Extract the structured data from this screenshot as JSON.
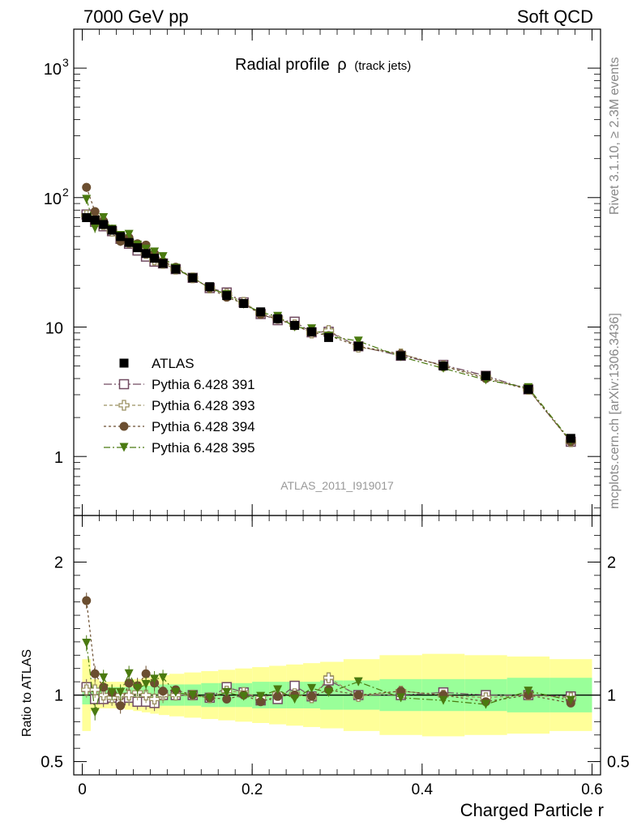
{
  "header": {
    "left": "7000 GeV pp",
    "right": "Soft QCD"
  },
  "title": {
    "main": "Radial profile",
    "symbol": "ρ",
    "sub": "(track jets)"
  },
  "side_labels": {
    "rivet": "Rivet 3.1.10, ≥ 2.3M events",
    "source": "mcplots.cern.ch [arXiv:1306.3436]"
  },
  "watermark": "ATLAS_2011_I919017",
  "colors": {
    "atlas": "#000000",
    "p391": "#704a60",
    "p393": "#9a9060",
    "p394": "#6b4e30",
    "p395": "#4a7a10",
    "band_outer": "#ffff99",
    "band_inner": "#99ff99"
  },
  "chart_data": {
    "type": "scatter",
    "x": [
      0.005,
      0.015,
      0.025,
      0.035,
      0.045,
      0.055,
      0.065,
      0.075,
      0.085,
      0.095,
      0.11,
      0.13,
      0.15,
      0.17,
      0.19,
      0.21,
      0.23,
      0.25,
      0.27,
      0.29,
      0.325,
      0.375,
      0.425,
      0.475,
      0.525,
      0.575
    ],
    "xlabel": "Charged Particle r",
    "ylabel_ratio": "Ratio to ATLAS",
    "xlim": [
      -0.01,
      0.61
    ],
    "ylim": [
      0.35,
      2000
    ],
    "ylim_ratio": [
      0.4,
      2.35
    ],
    "y_log": true,
    "xticks": [
      "0",
      "0.2",
      "0.4",
      "0.6"
    ],
    "yticks": [
      "1",
      "10",
      "10^2",
      "10^3"
    ],
    "yticks_ratio": [
      "0.5",
      "1",
      "2"
    ],
    "legend": {
      "position": "lower-left"
    },
    "series": [
      {
        "name": "ATLAS",
        "marker": "square-filled",
        "color": "#000000",
        "values": [
          70,
          67,
          62,
          56,
          50,
          45,
          41,
          37,
          34,
          31,
          28,
          24,
          20.5,
          17.5,
          15.2,
          13.1,
          11.6,
          10.3,
          9.2,
          8.3,
          7.1,
          6.0,
          5.0,
          4.2,
          3.3,
          1.38
        ]
      },
      {
        "name": "Pythia 6.428 391",
        "marker": "square-open",
        "color": "#704a60",
        "values": [
          74,
          65,
          60,
          55,
          48,
          44,
          39,
          35,
          32,
          31,
          28,
          24,
          20,
          18.5,
          15.5,
          12.6,
          11.3,
          11,
          9.1,
          9.2,
          7.1,
          6.0,
          5.1,
          4.2,
          3.3,
          1.3
        ]
      },
      {
        "name": "Pythia 6.428 393",
        "marker": "cross-open",
        "color": "#9a9060",
        "values": [
          73,
          70,
          62,
          55,
          50,
          45,
          42,
          37,
          33,
          31,
          28,
          24,
          20,
          18,
          15.5,
          12.8,
          11.7,
          10.4,
          9.0,
          9.4,
          7.0,
          6.2,
          5.0,
          4.1,
          3.3,
          1.3
        ]
      },
      {
        "name": "Pythia 6.428 394",
        "marker": "circle-filled",
        "color": "#6b4e30",
        "values": [
          120,
          78,
          66,
          57,
          46,
          49,
          44,
          43,
          37,
          32,
          29,
          24,
          20,
          17,
          15.2,
          12.5,
          11.5,
          10.3,
          9.1,
          8.6,
          7.1,
          6.2,
          5.0,
          4.0,
          3.3,
          1.3
        ]
      },
      {
        "name": "Pythia 6.428 395",
        "marker": "triangle-down-filled",
        "color": "#4a7a10",
        "values": [
          97,
          58,
          70,
          57,
          51,
          52,
          43,
          40,
          38,
          35,
          28.5,
          24,
          20,
          17.8,
          15,
          13,
          12.1,
          10,
          9.7,
          8.5,
          7.8,
          5.9,
          4.8,
          3.9,
          3.4,
          1.32
        ]
      }
    ],
    "ratio_series": [
      {
        "name": "Pythia 6.428 391",
        "values": [
          1.06,
          0.97,
          0.97,
          0.98,
          0.96,
          0.98,
          0.95,
          0.95,
          0.94,
          1.0,
          1.0,
          1.0,
          0.98,
          1.06,
          1.02,
          0.96,
          0.97,
          1.07,
          0.99,
          1.11,
          1.0,
          1.0,
          1.02,
          1.0,
          1.0,
          0.99
        ]
      },
      {
        "name": "Pythia 6.428 393",
        "values": [
          1.04,
          1.04,
          1.0,
          0.98,
          1.0,
          1.0,
          1.02,
          1.0,
          0.97,
          1.0,
          1.0,
          1.0,
          0.98,
          1.03,
          1.02,
          0.98,
          1.01,
          1.01,
          0.98,
          1.13,
          0.99,
          1.03,
          1.0,
          0.98,
          1.0,
          0.98
        ]
      },
      {
        "name": "Pythia 6.428 394",
        "values": [
          1.71,
          1.16,
          1.06,
          1.02,
          0.92,
          1.09,
          1.07,
          1.16,
          1.09,
          1.03,
          1.04,
          1.0,
          0.98,
          0.97,
          1.0,
          0.95,
          0.99,
          1.0,
          0.99,
          1.04,
          1.0,
          1.03,
          1.0,
          0.95,
          1.0,
          0.94
        ]
      },
      {
        "name": "Pythia 6.428 395",
        "values": [
          1.39,
          0.87,
          1.13,
          1.02,
          1.02,
          1.16,
          1.05,
          1.08,
          1.12,
          1.13,
          1.02,
          1.0,
          0.98,
          1.02,
          0.99,
          0.99,
          1.04,
          0.97,
          1.05,
          1.02,
          1.1,
          0.98,
          0.96,
          0.93,
          1.03,
          0.96
        ]
      }
    ],
    "uncertainty_band": {
      "outer": [
        0.27,
        0.12,
        0.1,
        0.1,
        0.1,
        0.11,
        0.12,
        0.13,
        0.14,
        0.15,
        0.16,
        0.17,
        0.18,
        0.19,
        0.2,
        0.21,
        0.22,
        0.23,
        0.24,
        0.25,
        0.27,
        0.3,
        0.31,
        0.3,
        0.29,
        0.27
      ],
      "inner": [
        0.07,
        0.06,
        0.06,
        0.06,
        0.06,
        0.06,
        0.06,
        0.07,
        0.07,
        0.08,
        0.08,
        0.08,
        0.09,
        0.09,
        0.09,
        0.1,
        0.1,
        0.1,
        0.1,
        0.11,
        0.11,
        0.12,
        0.12,
        0.12,
        0.13,
        0.13
      ]
    }
  }
}
